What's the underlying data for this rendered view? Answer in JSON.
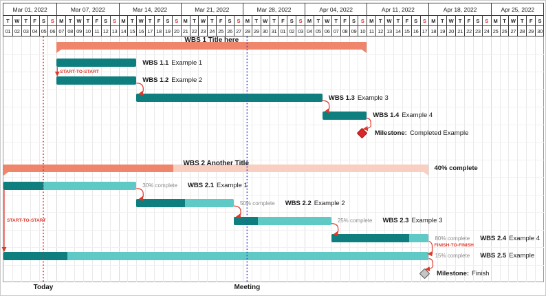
{
  "colors": {
    "group_dark": "#EF866B",
    "group_light": "#F9CFC2",
    "task_dark": "#0E7F7E",
    "task_light": "#5FCAC5",
    "link": "#E0382B",
    "sunday": "#CC2222",
    "today_line": "#D9262C",
    "meeting_line": "#4444CC",
    "percent_text": "#8A8A8A",
    "milestone_red_fill": "#D9262C",
    "milestone_red_border": "#9E1A12",
    "milestone_gray_fill": "#C6C6C6",
    "milestone_gray_border": "#5A5A5A",
    "header_border": "#3B3B3B",
    "frame_border": "#979797",
    "grid_v": "#EAEAEA",
    "grid_v_week": "#DADADA",
    "grid_h": "#F0F0F0",
    "text": "#1A1A1A"
  },
  "chart_data": {
    "type": "gantt",
    "timeline": {
      "start": "Mar 01, 2022",
      "end": "Apr 30, 2022",
      "unit": "day",
      "total_days": 61
    },
    "calendar": {
      "weeks": [
        {
          "label": "Mar 01, 2022",
          "days": [
            [
              "T",
              "01",
              0
            ],
            [
              "W",
              "02",
              0
            ],
            [
              "T",
              "03",
              0
            ],
            [
              "F",
              "04",
              0
            ],
            [
              "S",
              "05",
              0
            ],
            [
              "S",
              "06",
              1
            ]
          ]
        },
        {
          "label": "Mar 07, 2022",
          "days": [
            [
              "M",
              "07",
              0
            ],
            [
              "T",
              "08",
              0
            ],
            [
              "W",
              "09",
              0
            ],
            [
              "T",
              "10",
              0
            ],
            [
              "F",
              "11",
              0
            ],
            [
              "S",
              "12",
              0
            ],
            [
              "S",
              "13",
              1
            ]
          ]
        },
        {
          "label": "Mar 14, 2022",
          "days": [
            [
              "M",
              "14",
              0
            ],
            [
              "T",
              "15",
              0
            ],
            [
              "W",
              "16",
              0
            ],
            [
              "T",
              "17",
              0
            ],
            [
              "F",
              "18",
              0
            ],
            [
              "S",
              "19",
              0
            ],
            [
              "S",
              "20",
              1
            ]
          ]
        },
        {
          "label": "Mar 21, 2022",
          "days": [
            [
              "M",
              "21",
              0
            ],
            [
              "T",
              "22",
              0
            ],
            [
              "W",
              "23",
              0
            ],
            [
              "T",
              "24",
              0
            ],
            [
              "F",
              "25",
              0
            ],
            [
              "S",
              "26",
              0
            ],
            [
              "S",
              "27",
              1
            ]
          ]
        },
        {
          "label": "Mar 28, 2022",
          "days": [
            [
              "M",
              "28",
              0
            ],
            [
              "T",
              "29",
              0
            ],
            [
              "W",
              "30",
              0
            ],
            [
              "T",
              "31",
              0
            ],
            [
              "F",
              "01",
              0
            ],
            [
              "S",
              "02",
              0
            ],
            [
              "S",
              "03",
              1
            ]
          ]
        },
        {
          "label": "Apr 04, 2022",
          "days": [
            [
              "M",
              "04",
              0
            ],
            [
              "T",
              "05",
              0
            ],
            [
              "W",
              "06",
              0
            ],
            [
              "T",
              "07",
              0
            ],
            [
              "F",
              "08",
              0
            ],
            [
              "S",
              "09",
              0
            ],
            [
              "S",
              "10",
              1
            ]
          ]
        },
        {
          "label": "Apr 11, 2022",
          "days": [
            [
              "M",
              "11",
              0
            ],
            [
              "T",
              "12",
              0
            ],
            [
              "W",
              "13",
              0
            ],
            [
              "T",
              "14",
              0
            ],
            [
              "F",
              "15",
              0
            ],
            [
              "S",
              "16",
              0
            ],
            [
              "S",
              "17",
              1
            ]
          ]
        },
        {
          "label": "Apr 18, 2022",
          "days": [
            [
              "M",
              "18",
              0
            ],
            [
              "T",
              "19",
              0
            ],
            [
              "W",
              "20",
              0
            ],
            [
              "T",
              "21",
              0
            ],
            [
              "F",
              "22",
              0
            ],
            [
              "S",
              "23",
              0
            ],
            [
              "S",
              "24",
              1
            ]
          ]
        },
        {
          "label": "Apr 25, 2022",
          "days": [
            [
              "M",
              "25",
              0
            ],
            [
              "T",
              "26",
              0
            ],
            [
              "W",
              "27",
              0
            ],
            [
              "T",
              "28",
              0
            ],
            [
              "F",
              "29",
              0
            ],
            [
              "S",
              "30",
              0
            ]
          ]
        }
      ]
    },
    "tasks": [
      {
        "id": "g1",
        "kind": "group",
        "row": 0,
        "start": 6,
        "end": 41,
        "start_date": "Mar 07, 2022",
        "end_date": "Apr 10, 2022",
        "title": "WBS 1 Title here"
      },
      {
        "id": "t11",
        "kind": "task",
        "row": 1,
        "start": 6,
        "end": 15,
        "start_date": "Mar 07, 2022",
        "end_date": "Mar 15, 2022",
        "name": "WBS 1.1",
        "desc": "Example 1"
      },
      {
        "id": "t12",
        "kind": "task",
        "row": 2,
        "start": 6,
        "end": 15,
        "start_date": "Mar 07, 2022",
        "end_date": "Mar 15, 2022",
        "name": "WBS 1.2",
        "desc": "Example 2"
      },
      {
        "id": "t13",
        "kind": "task",
        "row": 3,
        "start": 15,
        "end": 36,
        "start_date": "Mar 16, 2022",
        "end_date": "Apr 05, 2022",
        "name": "WBS 1.3",
        "desc": "Example 3"
      },
      {
        "id": "t14",
        "kind": "task",
        "row": 4,
        "start": 36,
        "end": 41,
        "start_date": "Apr 06, 2022",
        "end_date": "Apr 10, 2022",
        "name": "WBS 1.4",
        "desc": "Example 4"
      },
      {
        "id": "m1",
        "kind": "milestone",
        "row": 5,
        "day": 40,
        "date": "Apr 10, 2022",
        "color": "red",
        "name": "Milestone:",
        "desc": "Completed Example"
      },
      {
        "id": "g2",
        "kind": "group",
        "row": 7,
        "start": 0,
        "end": 48,
        "start_date": "Mar 01, 2022",
        "end_date": "Apr 17, 2022",
        "title": "WBS 2 Another Title",
        "progress": 40,
        "percent_label": "40% complete"
      },
      {
        "id": "t21",
        "kind": "task",
        "row": 8,
        "start": 0,
        "end": 15,
        "start_date": "Mar 01, 2022",
        "end_date": "Mar 15, 2022",
        "progress": 30,
        "percent_label": "30% complete",
        "name": "WBS 2.1",
        "desc": "Example 1"
      },
      {
        "id": "t22",
        "kind": "task",
        "row": 9,
        "start": 15,
        "end": 26,
        "start_date": "Mar 16, 2022",
        "end_date": "Mar 26, 2022",
        "progress": 50,
        "percent_label": "50% complete",
        "name": "WBS 2.2",
        "desc": "Example 2"
      },
      {
        "id": "t23",
        "kind": "task",
        "row": 10,
        "start": 26,
        "end": 37,
        "start_date": "Mar 27, 2022",
        "end_date": "Apr 06, 2022",
        "progress": 25,
        "percent_label": "25% complete",
        "name": "WBS 2.3",
        "desc": "Example 3"
      },
      {
        "id": "t24",
        "kind": "task",
        "row": 11,
        "start": 37,
        "end": 48,
        "start_date": "Apr 07, 2022",
        "end_date": "Apr 17, 2022",
        "progress": 80,
        "percent_label": "80% complete",
        "name": "WBS 2.4",
        "desc": "Example 4"
      },
      {
        "id": "t25",
        "kind": "task",
        "row": 12,
        "start": 0,
        "end": 48,
        "start_date": "Mar 01, 2022",
        "end_date": "Apr 17, 2022",
        "progress": 15,
        "percent_label": "15% complete",
        "name": "WBS 2.5",
        "desc": "Example"
      },
      {
        "id": "m2",
        "kind": "milestone",
        "row": 13,
        "day": 47,
        "date": "Apr 17, 2022",
        "color": "gray",
        "name": "Milestone:",
        "desc": "Finish"
      }
    ],
    "links": [
      {
        "type": "ss",
        "from": "t11",
        "to": "t12",
        "label": "START-TO-START"
      },
      {
        "type": "fs",
        "from": "t12",
        "to": "t13"
      },
      {
        "type": "fs",
        "from": "t13",
        "to": "t14"
      },
      {
        "type": "fs",
        "from": "t14",
        "to": "m1"
      },
      {
        "type": "ss",
        "from": "t21",
        "to": "t25",
        "label": "START-TO-START"
      },
      {
        "type": "fs",
        "from": "t21",
        "to": "t22"
      },
      {
        "type": "fs",
        "from": "t22",
        "to": "t23"
      },
      {
        "type": "fs",
        "from": "t23",
        "to": "t24"
      },
      {
        "type": "ff",
        "from": "t24",
        "to": "t25",
        "label": "FINISH-TO-FINISH"
      },
      {
        "type": "fs",
        "from": "t25",
        "to": "m2"
      }
    ],
    "markers": [
      {
        "id": "today",
        "label": "Today",
        "date": "Mar 05, 2022",
        "day_center": 4.5,
        "color_key": "today_line"
      },
      {
        "id": "meeting",
        "label": "Meeting",
        "date": "Mar 28, 2022",
        "day_center": 27.5,
        "color_key": "meeting_line"
      }
    ]
  }
}
